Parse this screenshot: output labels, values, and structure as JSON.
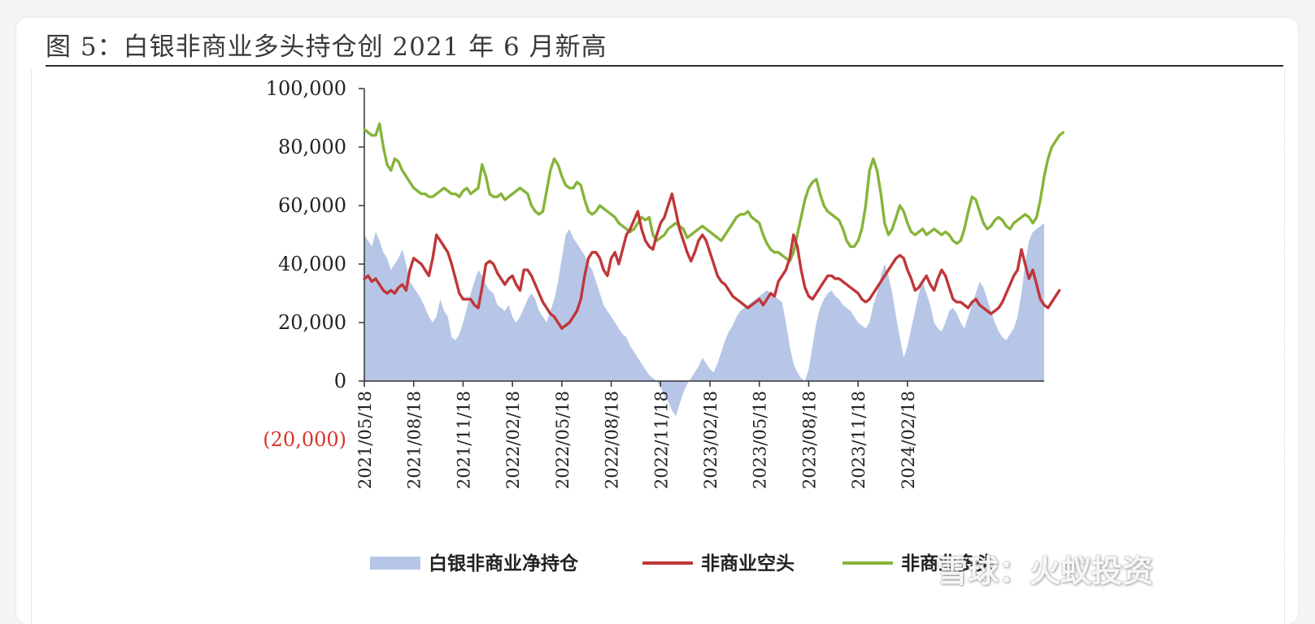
{
  "title": "图 5：白银非商业多头持仓创 2021 年 6 月新高",
  "watermark": "雪球：火蚁投资",
  "chart_data": {
    "type": "line",
    "title": "图 5：白银非商业多头持仓创 2021 年 6 月新高",
    "ylim": [
      -20000,
      100000
    ],
    "yticks": [
      "(20,000)",
      "0",
      "20,000",
      "40,000",
      "60,000",
      "80,000",
      "100,000"
    ],
    "xticks": [
      "2021/05/18",
      "2021/08/18",
      "2021/11/18",
      "2022/02/18",
      "2022/05/18",
      "2022/08/18",
      "2022/11/18",
      "2023/02/18",
      "2023/05/18",
      "2023/08/18",
      "2023/11/18",
      "2024/02/18"
    ],
    "x_start": "2021/05/18",
    "x_interval_weeks": 1,
    "legend": "bottom",
    "colors": {
      "net": "#b7c6e6",
      "short": "#c0363a",
      "long": "#86b43a"
    },
    "series": [
      {
        "name": "白银非商业净持仓",
        "style": "area",
        "values": [
          50000,
          48000,
          46000,
          51000,
          48000,
          44000,
          42000,
          38000,
          40000,
          42000,
          45000,
          40000,
          34000,
          32000,
          30000,
          28000,
          25000,
          22000,
          20000,
          22000,
          28000,
          24000,
          22000,
          15000,
          14000,
          16000,
          20000,
          25000,
          30000,
          34000,
          38000,
          36000,
          33000,
          31000,
          30000,
          26000,
          25000,
          24000,
          26000,
          22000,
          20000,
          22000,
          25000,
          28000,
          30000,
          28000,
          24000,
          22000,
          20000,
          24000,
          28000,
          34000,
          42000,
          50000,
          52000,
          49000,
          47000,
          45000,
          43000,
          40000,
          38000,
          34000,
          30000,
          26000,
          24000,
          22000,
          20000,
          18000,
          16000,
          15000,
          12000,
          10000,
          8000,
          6000,
          4000,
          2000,
          1000,
          0,
          -2000,
          -5000,
          -7000,
          -10000,
          -12000,
          -8000,
          -4000,
          -1000,
          1000,
          3000,
          5000,
          8000,
          6000,
          4000,
          3000,
          6000,
          10000,
          14000,
          17000,
          19000,
          22000,
          24000,
          25000,
          26000,
          27000,
          28000,
          29000,
          30000,
          31000,
          30000,
          29000,
          28000,
          27000,
          20000,
          12000,
          6000,
          3000,
          1000,
          0,
          4000,
          12000,
          20000,
          25000,
          28000,
          30000,
          31000,
          29000,
          28000,
          26000,
          25000,
          24000,
          22000,
          20000,
          19000,
          18000,
          20000,
          26000,
          30000,
          36000,
          40000,
          36000,
          30000,
          22000,
          15000,
          8000,
          12000,
          18000,
          24000,
          30000,
          34000,
          30000,
          26000,
          20000,
          18000,
          17000,
          20000,
          24000,
          25000,
          23000,
          20000,
          18000,
          22000,
          26000,
          30000,
          34000,
          32000,
          28000,
          24000,
          20000,
          17000,
          15000,
          14000,
          16000,
          18000,
          22000,
          30000,
          40000,
          48000,
          51000,
          52000,
          53000,
          54000
        ]
      },
      {
        "name": "非商业空头",
        "style": "line",
        "values": [
          35000,
          36000,
          34000,
          35000,
          33000,
          31000,
          30000,
          31000,
          30000,
          32000,
          33000,
          31000,
          38000,
          42000,
          41000,
          40000,
          38000,
          36000,
          42000,
          50000,
          48000,
          46000,
          44000,
          40000,
          35000,
          30000,
          28000,
          28000,
          28000,
          26000,
          25000,
          32000,
          40000,
          41000,
          40000,
          37000,
          35000,
          33000,
          35000,
          36000,
          33000,
          31000,
          38000,
          38000,
          36000,
          33000,
          30000,
          27000,
          25000,
          23000,
          22000,
          20000,
          18000,
          19000,
          20000,
          22000,
          24000,
          28000,
          36000,
          42000,
          44000,
          44000,
          42000,
          38000,
          36000,
          42000,
          44000,
          40000,
          45000,
          50000,
          52000,
          55000,
          58000,
          52000,
          48000,
          46000,
          45000,
          50000,
          54000,
          56000,
          60000,
          64000,
          58000,
          52000,
          48000,
          44000,
          41000,
          44000,
          48000,
          50000,
          48000,
          44000,
          40000,
          36000,
          34000,
          33000,
          31000,
          29000,
          28000,
          27000,
          26000,
          25000,
          26000,
          27000,
          28000,
          26000,
          28000,
          30000,
          29000,
          34000,
          36000,
          38000,
          42000,
          50000,
          46000,
          38000,
          32000,
          29000,
          28000,
          30000,
          32000,
          34000,
          36000,
          36000,
          35000,
          35000,
          34000,
          33000,
          32000,
          31000,
          30000,
          28000,
          27000,
          28000,
          30000,
          32000,
          34000,
          36000,
          38000,
          40000,
          42000,
          43000,
          42000,
          38000,
          35000,
          31000,
          32000,
          34000,
          36000,
          33000,
          31000,
          35000,
          38000,
          36000,
          32000,
          28000,
          27000,
          27000,
          26000,
          25000,
          27000,
          28000,
          26000,
          25000,
          24000,
          23000,
          24000,
          25000,
          27000,
          30000,
          33000,
          36000,
          38000,
          45000,
          40000,
          35000,
          38000,
          33000,
          28000,
          26000,
          25000,
          27000,
          29000,
          31000
        ]
      },
      {
        "name": "非商业多头",
        "style": "line",
        "values": [
          86000,
          85000,
          84000,
          84000,
          88000,
          80000,
          74000,
          72000,
          76000,
          75000,
          72000,
          70000,
          68000,
          66000,
          65000,
          64000,
          64000,
          63000,
          63000,
          64000,
          65000,
          66000,
          65000,
          64000,
          64000,
          63000,
          65000,
          66000,
          64000,
          65000,
          66000,
          74000,
          70000,
          64000,
          63000,
          63000,
          64000,
          62000,
          63000,
          64000,
          65000,
          66000,
          65000,
          64000,
          60000,
          58000,
          57000,
          58000,
          65000,
          72000,
          76000,
          74000,
          70000,
          67000,
          66000,
          66000,
          68000,
          67000,
          62000,
          58000,
          57000,
          58000,
          60000,
          59000,
          58000,
          57000,
          56000,
          54000,
          53000,
          52000,
          51000,
          52000,
          54000,
          56000,
          55000,
          56000,
          50000,
          48000,
          49000,
          50000,
          52000,
          53000,
          54000,
          53000,
          52000,
          49000,
          50000,
          51000,
          52000,
          53000,
          52000,
          51000,
          50000,
          49000,
          48000,
          50000,
          52000,
          54000,
          56000,
          57000,
          57000,
          58000,
          56000,
          55000,
          54000,
          50000,
          47000,
          45000,
          44000,
          44000,
          43000,
          42000,
          41000,
          44000,
          50000,
          56000,
          62000,
          66000,
          68000,
          69000,
          64000,
          60000,
          58000,
          57000,
          56000,
          55000,
          52000,
          48000,
          46000,
          46000,
          48000,
          52000,
          60000,
          72000,
          76000,
          72000,
          64000,
          54000,
          50000,
          52000,
          56000,
          60000,
          58000,
          54000,
          51000,
          50000,
          51000,
          52000,
          50000,
          51000,
          52000,
          51000,
          50000,
          51000,
          50000,
          48000,
          47000,
          48000,
          52000,
          58000,
          63000,
          62000,
          58000,
          54000,
          52000,
          53000,
          55000,
          56000,
          55000,
          53000,
          52000,
          54000,
          55000,
          56000,
          57000,
          56000,
          54000,
          56000,
          62000,
          70000,
          76000,
          80000,
          82000,
          84000,
          85000
        ]
      }
    ]
  }
}
